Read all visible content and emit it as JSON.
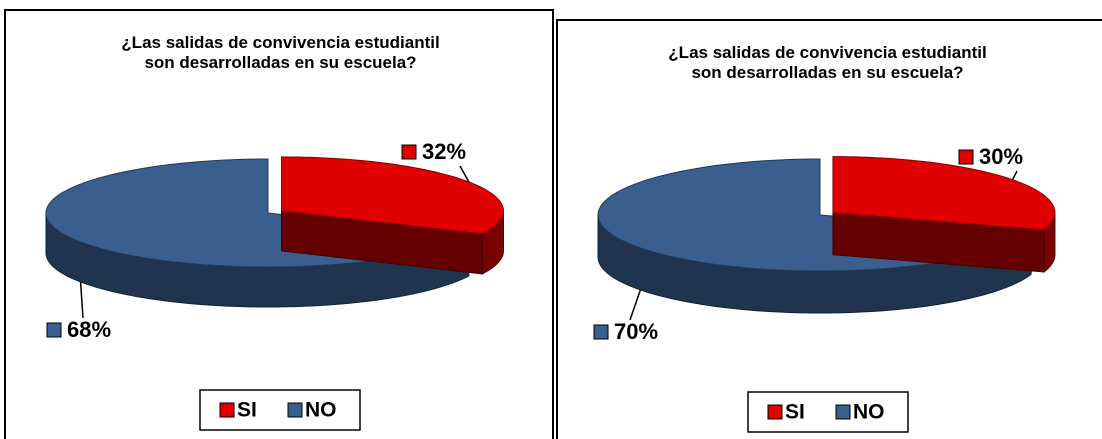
{
  "chart_data": [
    {
      "type": "pie",
      "title": "¿Las salidas de convivencia estudiantil son desarrolladas en su escuela?",
      "categories": [
        "SI",
        "NO"
      ],
      "values": [
        32,
        68
      ],
      "value_labels": [
        "32%",
        "68%"
      ],
      "colors": [
        "#e00000",
        "#3a5f8f"
      ],
      "legend": "bottom"
    },
    {
      "type": "pie",
      "title": "¿Las salidas de convivencia estudiantil son desarrolladas en su escuela?",
      "categories": [
        "SI",
        "NO"
      ],
      "values": [
        30,
        70
      ],
      "value_labels": [
        "30%",
        "70%"
      ],
      "colors": [
        "#e00000",
        "#3a5f8f"
      ],
      "legend": "bottom"
    }
  ]
}
